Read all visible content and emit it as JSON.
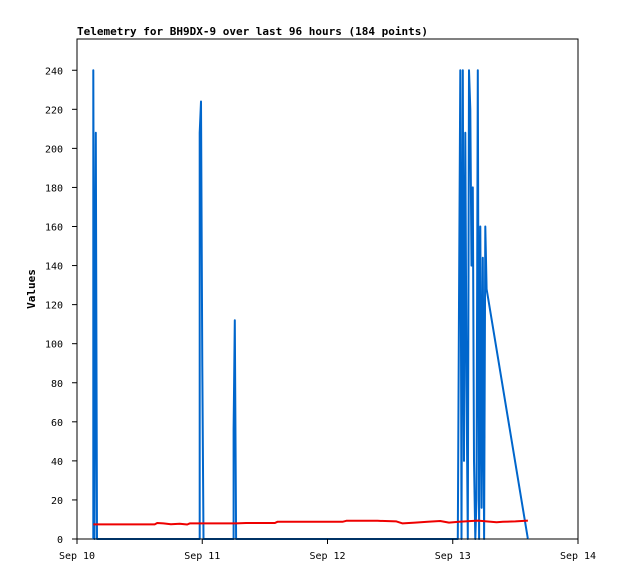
{
  "chart_data": {
    "type": "line",
    "title": "Telemetry for BH9DX-9 over last 96 hours (184 points)",
    "xlabel": "",
    "ylabel": "Values",
    "x_ticks": [
      "Sep 10",
      "Sep 11",
      "Sep 12",
      "Sep 13",
      "Sep 14"
    ],
    "x_tick_days": [
      10,
      11,
      12,
      13,
      14
    ],
    "xlim": [
      10.0,
      14.0
    ],
    "y_ticks": [
      0,
      20,
      40,
      60,
      80,
      100,
      120,
      140,
      160,
      180,
      200,
      220,
      240
    ],
    "ylim": [
      0,
      256
    ],
    "grid": false,
    "series": [
      {
        "color": "#0066cc",
        "points": [
          [
            10.13,
            0
          ],
          [
            10.13,
            240
          ],
          [
            10.14,
            0
          ],
          [
            10.15,
            208
          ],
          [
            10.16,
            0
          ],
          [
            10.98,
            0
          ],
          [
            10.98,
            208
          ],
          [
            10.99,
            224
          ],
          [
            11.0,
            88
          ],
          [
            11.01,
            0
          ],
          [
            11.25,
            0
          ],
          [
            11.25,
            56
          ],
          [
            11.26,
            112
          ],
          [
            11.27,
            0
          ],
          [
            13.04,
            0
          ],
          [
            13.05,
            120
          ],
          [
            13.06,
            240
          ],
          [
            13.07,
            0
          ],
          [
            13.08,
            240
          ],
          [
            13.09,
            40
          ],
          [
            13.1,
            208
          ],
          [
            13.11,
            80
          ],
          [
            13.12,
            0
          ],
          [
            13.13,
            240
          ],
          [
            13.14,
            220
          ],
          [
            13.15,
            140
          ],
          [
            13.16,
            180
          ],
          [
            13.17,
            40
          ],
          [
            13.18,
            0
          ],
          [
            13.19,
            20
          ],
          [
            13.2,
            240
          ],
          [
            13.21,
            0
          ],
          [
            13.22,
            160
          ],
          [
            13.23,
            16
          ],
          [
            13.24,
            144
          ],
          [
            13.25,
            0
          ],
          [
            13.26,
            160
          ],
          [
            13.27,
            128
          ],
          [
            13.6,
            0
          ]
        ]
      },
      {
        "color": "#ee0000",
        "points": [
          [
            10.13,
            7.5
          ],
          [
            10.62,
            7.5
          ],
          [
            10.64,
            8.2
          ],
          [
            10.69,
            8.0
          ],
          [
            10.75,
            7.6
          ],
          [
            10.82,
            7.8
          ],
          [
            10.88,
            7.4
          ],
          [
            10.9,
            8.0
          ],
          [
            11.0,
            8.0
          ],
          [
            11.1,
            8.0
          ],
          [
            11.27,
            8.0
          ],
          [
            11.35,
            8.2
          ],
          [
            11.58,
            8.2
          ],
          [
            11.6,
            8.8
          ],
          [
            12.12,
            8.8
          ],
          [
            12.15,
            9.3
          ],
          [
            12.4,
            9.3
          ],
          [
            12.55,
            9.0
          ],
          [
            12.6,
            8.0
          ],
          [
            12.7,
            8.4
          ],
          [
            12.8,
            8.8
          ],
          [
            12.9,
            9.2
          ],
          [
            12.97,
            8.4
          ],
          [
            13.05,
            8.8
          ],
          [
            13.2,
            9.4
          ],
          [
            13.35,
            8.6
          ],
          [
            13.4,
            8.8
          ],
          [
            13.5,
            9.0
          ],
          [
            13.6,
            9.4
          ]
        ]
      },
      {
        "color": "#000000",
        "points": [
          [
            10.13,
            0
          ],
          [
            13.6,
            0
          ]
        ]
      }
    ]
  }
}
